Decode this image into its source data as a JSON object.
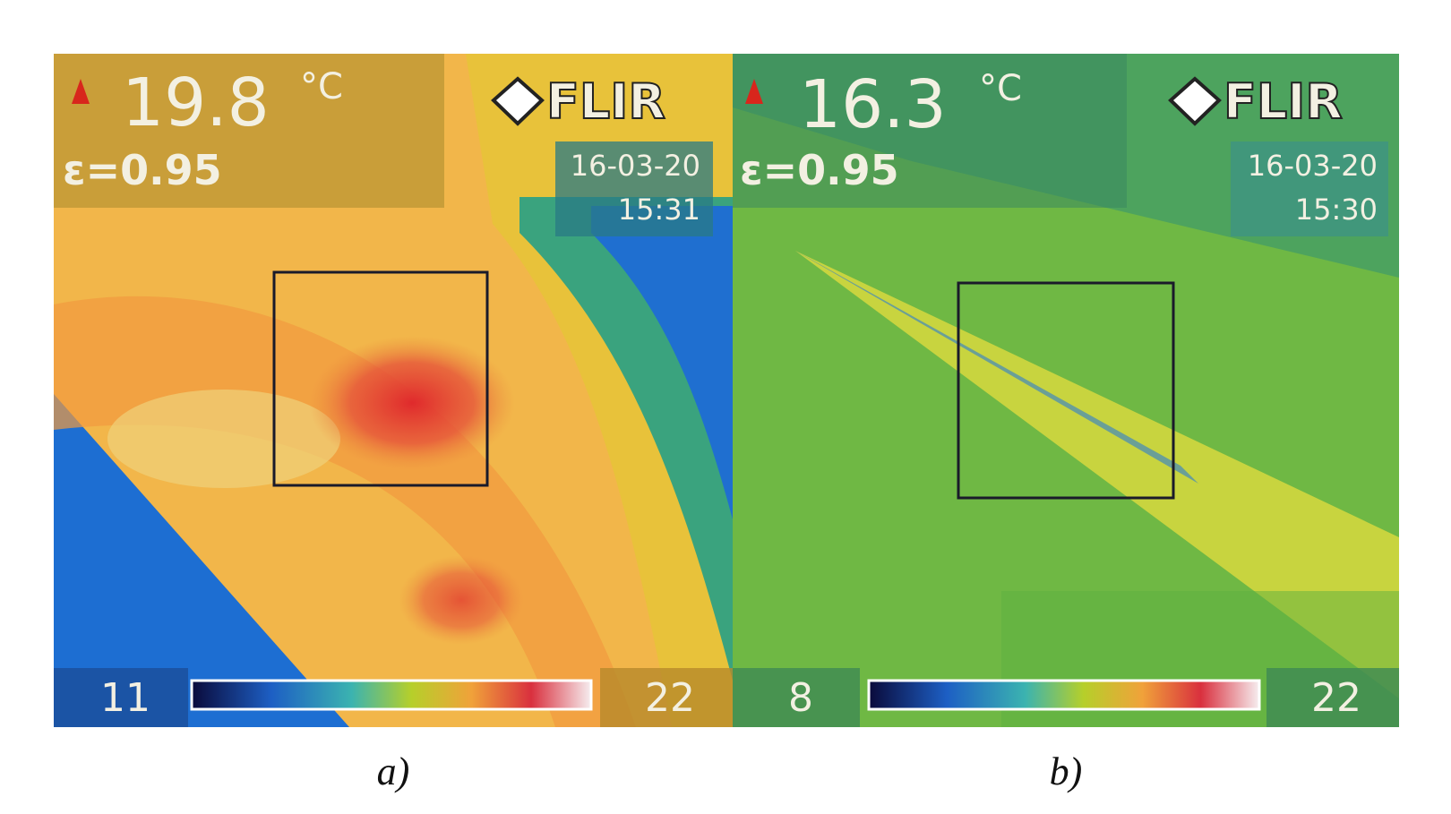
{
  "panels": [
    {
      "temperature": 19.8,
      "unit": "°C",
      "emissivity": "ε=0.95",
      "logo": "FLIR",
      "date": "16-03-20",
      "time": "15:31",
      "scale_min": 11,
      "scale_max": 22,
      "caption": "a)"
    },
    {
      "temperature": 16.3,
      "unit": "°C",
      "emissivity": "ε=0.95",
      "logo": "FLIR",
      "date": "16-03-20",
      "time": "15:30",
      "scale_min": 8,
      "scale_max": 22,
      "caption": "b)"
    }
  ]
}
